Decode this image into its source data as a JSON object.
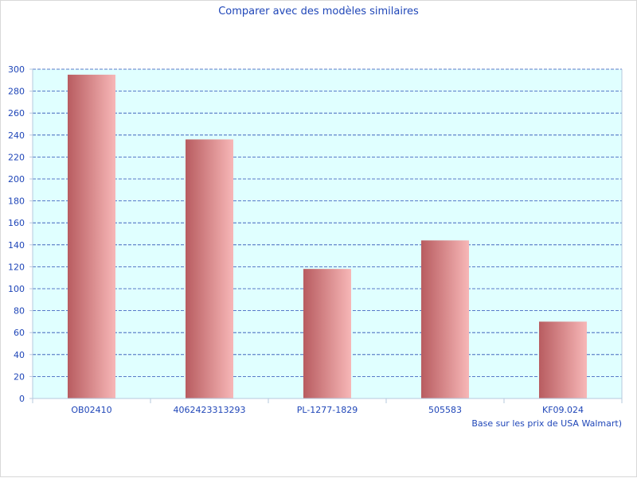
{
  "chart_data": {
    "type": "bar",
    "title": "Comparer avec des modèles similaires",
    "note": "Base sur les prix de USA Walmart)",
    "categories": [
      "OB02410",
      "4062423313293",
      "PL-1277-1829",
      "505583",
      "KF09.024"
    ],
    "values": [
      295,
      236,
      118,
      144,
      70
    ],
    "ylim": [
      0,
      300
    ],
    "yticks": [
      0,
      20,
      40,
      60,
      80,
      100,
      120,
      140,
      160,
      180,
      200,
      220,
      240,
      260,
      280,
      300
    ],
    "grid": true,
    "colors": {
      "plot_bg": "#e0ffff",
      "grid": "#2b4fb5",
      "axis": "#b6c8dd",
      "bar_dark": "#b85c60",
      "bar_light": "#f7b7b7",
      "text": "#1f46b8"
    }
  }
}
